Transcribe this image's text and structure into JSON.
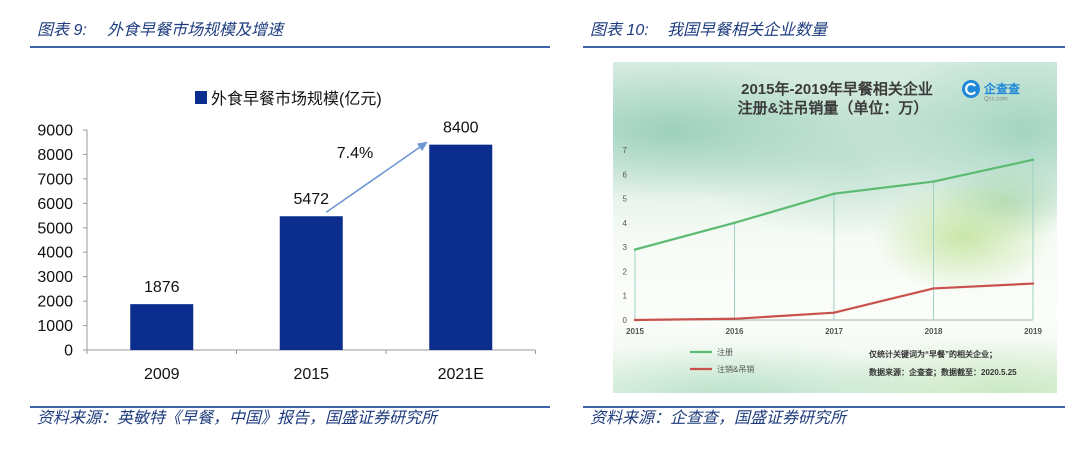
{
  "figures": [
    {
      "number": "图表 9:",
      "caption": "外食早餐市场规模及增速",
      "source": "资料来源：英敏特《早餐，中国》报告，国盛证券研究所"
    },
    {
      "number": "图表 10:",
      "caption": "我国早餐相关企业数量",
      "source": "资料来源：企查查，国盛证券研究所"
    }
  ],
  "colors": {
    "caption_text": "#1e3c7e",
    "rule": "#3f63ab"
  },
  "chart_data": [
    {
      "type": "bar",
      "categories": [
        "2009",
        "2015",
        "2021E"
      ],
      "series": [
        {
          "name": "外食早餐市场规模(亿元)",
          "values": [
            1876,
            5472,
            8400
          ],
          "color": "#0b2e8e"
        }
      ],
      "ylim": [
        0,
        9000
      ],
      "yticks": [
        0,
        1000,
        2000,
        3000,
        4000,
        5000,
        6000,
        7000,
        8000,
        9000
      ],
      "data_labels": true,
      "annotations": [
        {
          "text": "7.4%",
          "arrow": true,
          "from": 1,
          "to": 2,
          "color": "#6f98d3"
        }
      ],
      "legend": "top",
      "grid": false
    },
    {
      "type": "line",
      "title": "2015年-2019年早餐相关企业",
      "subtitle": "注册&注吊销量（单位：万）",
      "x": [
        "2015",
        "2016",
        "2017",
        "2018",
        "2019"
      ],
      "series": [
        {
          "name": "注册",
          "values": [
            2.9,
            4.0,
            5.2,
            5.7,
            6.6
          ],
          "color": "#5cbb73"
        },
        {
          "name": "注销&吊销",
          "values": [
            0,
            0.05,
            0.3,
            1.3,
            1.5
          ],
          "color": "#c8514c"
        }
      ],
      "ylim": [
        0,
        7
      ],
      "yticks": [
        0,
        1,
        2,
        3,
        4,
        5,
        6,
        7
      ],
      "drop_lines": true,
      "grid": false,
      "legend": "bottom-left",
      "notes": [
        "仅统计关键词为“早餐”的相关企业；",
        "数据来源：企查查；数据截至：2020.5.25"
      ],
      "logo": {
        "text": "企查查",
        "subtext": "Qcc.com",
        "icon": "qcc-logo-icon",
        "color": "#1f88d9"
      }
    }
  ]
}
